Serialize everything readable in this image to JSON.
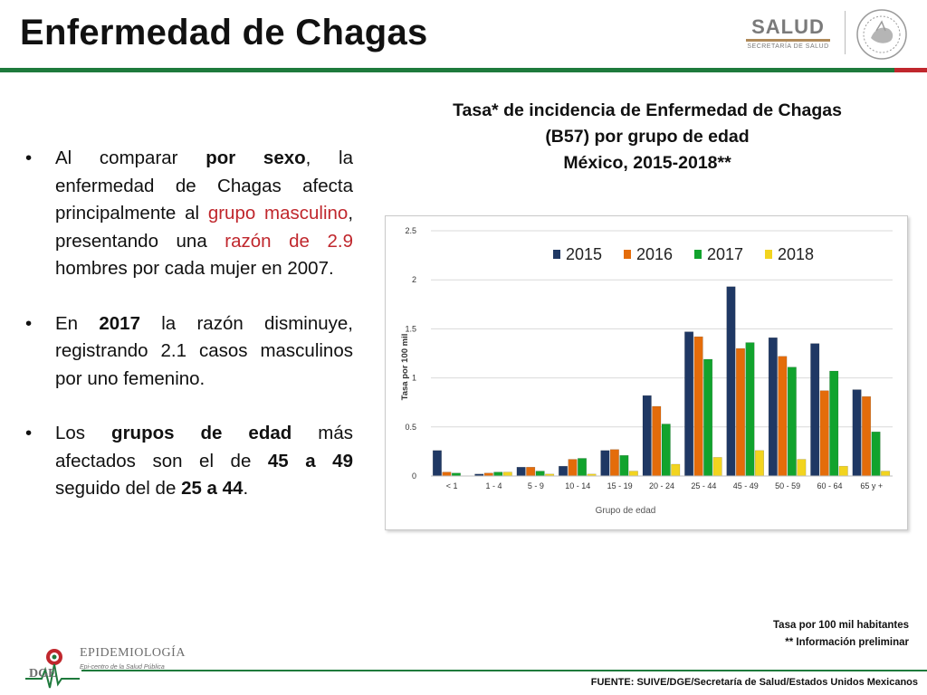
{
  "page": {
    "title": "Enfermedad de Chagas"
  },
  "header": {
    "salud_text": "SALUD",
    "secretaria_text": "SECRETARÍA DE SALUD"
  },
  "bullets": [
    [
      {
        "t": "Al comparar ",
        "s": ""
      },
      {
        "t": "por sexo",
        "s": "b"
      },
      {
        "t": ", la enfermedad de Chagas afecta principalmente al ",
        "s": ""
      },
      {
        "t": "grupo masculino",
        "s": "r"
      },
      {
        "t": ", presentando una ",
        "s": ""
      },
      {
        "t": "razón de 2.9",
        "s": "r"
      },
      {
        "t": " hombres por cada mujer en 2007.",
        "s": ""
      }
    ],
    [
      {
        "t": "En ",
        "s": ""
      },
      {
        "t": "2017",
        "s": "b"
      },
      {
        "t": " la razón disminuye, registrando 2.1 casos masculinos por uno femenino.",
        "s": ""
      }
    ],
    [
      {
        "t": "Los ",
        "s": ""
      },
      {
        "t": "grupos de edad",
        "s": "b"
      },
      {
        "t": " más afectados son el de ",
        "s": ""
      },
      {
        "t": "45 a 49",
        "s": "b"
      },
      {
        "t": " seguido del de ",
        "s": ""
      },
      {
        "t": "25 a 44",
        "s": "b"
      },
      {
        "t": ".",
        "s": ""
      }
    ]
  ],
  "chart_title_lines": [
    "Tasa* de incidencia de Enfermedad de Chagas",
    "(B57) por grupo de edad",
    "México, 2015-2018**"
  ],
  "chart_data": {
    "type": "bar",
    "title": "Tasa* de incidencia de Enfermedad de Chagas (B57) por grupo de edad México, 2015-2018**",
    "xlabel": "Grupo de edad",
    "ylabel": "Tasa por 100 mil",
    "ylim": [
      0,
      2.5
    ],
    "yticks": [
      "0",
      "0.5",
      "1",
      "1.5",
      "2",
      "2.5"
    ],
    "ytick_values": [
      0,
      0.5,
      1,
      1.5,
      2,
      2.5
    ],
    "grid": true,
    "legend": "top",
    "categories": [
      "< 1",
      "1 - 4",
      "5 - 9",
      "10 - 14",
      "15 - 19",
      "20 - 24",
      "25 - 44",
      "45 - 49",
      "50 - 59",
      "60 - 64",
      "65 y +"
    ],
    "series": [
      {
        "name": "2015",
        "color": "#1f3864",
        "values": [
          0.26,
          0.02,
          0.09,
          0.1,
          0.26,
          0.82,
          1.47,
          1.93,
          1.41,
          1.35,
          0.88
        ]
      },
      {
        "name": "2016",
        "color": "#e46c0a",
        "values": [
          0.04,
          0.03,
          0.09,
          0.17,
          0.27,
          0.71,
          1.42,
          1.3,
          1.22,
          0.87,
          0.81
        ]
      },
      {
        "name": "2017",
        "color": "#11a32d",
        "values": [
          0.03,
          0.04,
          0.05,
          0.18,
          0.21,
          0.53,
          1.19,
          1.36,
          1.11,
          1.07,
          0.45
        ]
      },
      {
        "name": "2018",
        "color": "#f2d41f",
        "values": [
          0.0,
          0.04,
          0.02,
          0.02,
          0.05,
          0.12,
          0.19,
          0.26,
          0.17,
          0.1,
          0.05
        ]
      }
    ]
  },
  "notes": {
    "line1": "Tasa por 100 mil habitantes",
    "line2": "** Información preliminar"
  },
  "logo": {
    "name": "EPIDEMIOLOGÍA",
    "tagline": "Epi-centro de la Salud Pública",
    "mark": "DGE"
  },
  "source": "FUENTE: SUIVE/DGE/Secretaría de Salud/Estados Unidos Mexicanos"
}
